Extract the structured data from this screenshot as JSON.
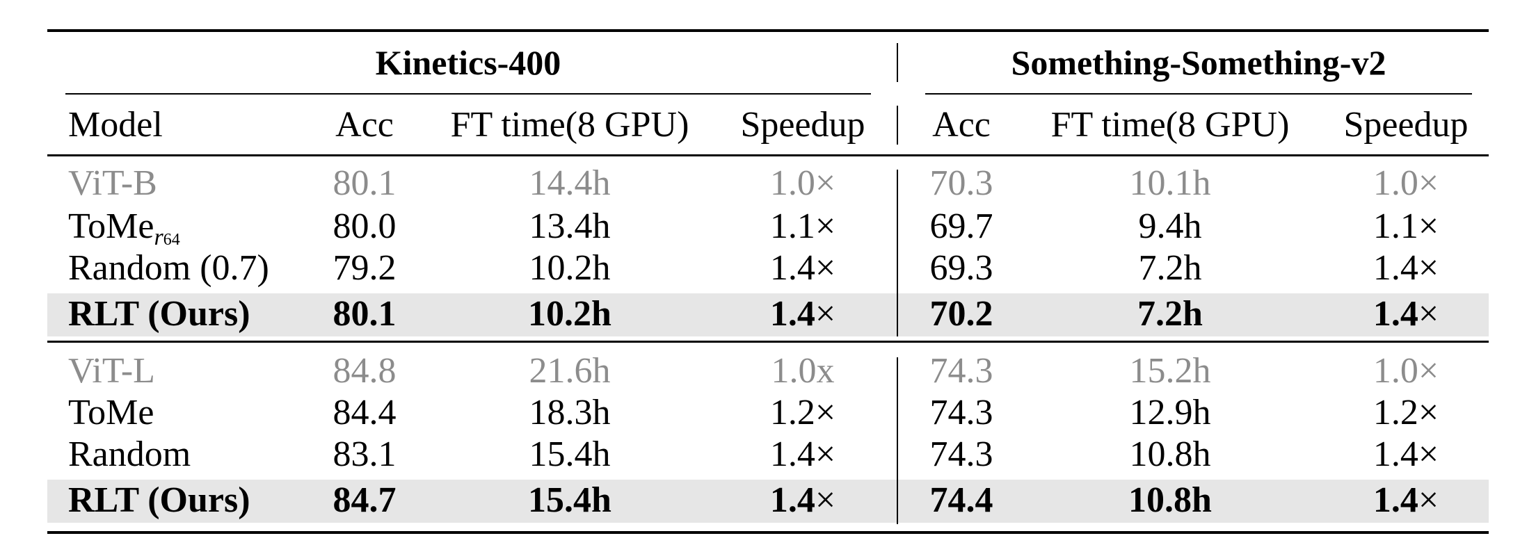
{
  "table": {
    "groups": [
      {
        "name": "Kinetics-400"
      },
      {
        "name": "Something-Something-v2"
      }
    ],
    "columns": [
      "Model",
      "Acc",
      "FT time(8 GPU)",
      "Speedup",
      "Acc",
      "FT time(8 GPU)",
      "Speedup"
    ],
    "rows": [
      {
        "model": "ViT-B",
        "model_sub_var": "",
        "model_sub_num": "",
        "k400_acc": "80.1",
        "k400_ft": "14.4h",
        "k400_speed": "1.0×",
        "ssv2_acc": "70.3",
        "ssv2_ft": "10.1h",
        "ssv2_speed": "1.0×"
      },
      {
        "model": "ToMe",
        "model_sub_var": "r",
        "model_sub_num": "64",
        "k400_acc": "80.0",
        "k400_ft": "13.4h",
        "k400_speed": "1.1×",
        "ssv2_acc": "69.7",
        "ssv2_ft": "9.4h",
        "ssv2_speed": "1.1×"
      },
      {
        "model": "Random (0.7)",
        "model_sub_var": "",
        "model_sub_num": "",
        "k400_acc": "79.2",
        "k400_ft": "10.2h",
        "k400_speed": "1.4×",
        "ssv2_acc": "69.3",
        "ssv2_ft": "7.2h",
        "ssv2_speed": "1.4×"
      },
      {
        "model": "RLT (Ours)",
        "model_sub_var": "",
        "model_sub_num": "",
        "k400_acc": "80.1",
        "k400_ft": "10.2h",
        "k400_speed": "1.4",
        "ssv2_acc": "70.2",
        "ssv2_ft": "7.2h",
        "ssv2_speed": "1.4"
      },
      {
        "model": "ViT-L",
        "model_sub_var": "",
        "model_sub_num": "",
        "k400_acc": "84.8",
        "k400_ft": "21.6h",
        "k400_speed": "1.0x",
        "ssv2_acc": "74.3",
        "ssv2_ft": "15.2h",
        "ssv2_speed": "1.0×"
      },
      {
        "model": "ToMe",
        "model_sub_var": "",
        "model_sub_num": "",
        "k400_acc": "84.4",
        "k400_ft": "18.3h",
        "k400_speed": "1.2×",
        "ssv2_acc": "74.3",
        "ssv2_ft": "12.9h",
        "ssv2_speed": "1.2×"
      },
      {
        "model": "Random",
        "model_sub_var": "",
        "model_sub_num": "",
        "k400_acc": "83.1",
        "k400_ft": "15.4h",
        "k400_speed": "1.4×",
        "ssv2_acc": "74.3",
        "ssv2_ft": "10.8h",
        "ssv2_speed": "1.4×"
      },
      {
        "model": "RLT (Ours)",
        "model_sub_var": "",
        "model_sub_num": "",
        "k400_acc": "84.7",
        "k400_ft": "15.4h",
        "k400_speed": "1.4",
        "ssv2_acc": "74.4",
        "ssv2_ft": "10.8h",
        "ssv2_speed": "1.4"
      }
    ],
    "times_symbol": "×",
    "colors": {
      "baseline_text": "#8c8c8c",
      "highlight_band": "#e6e6e6"
    }
  }
}
